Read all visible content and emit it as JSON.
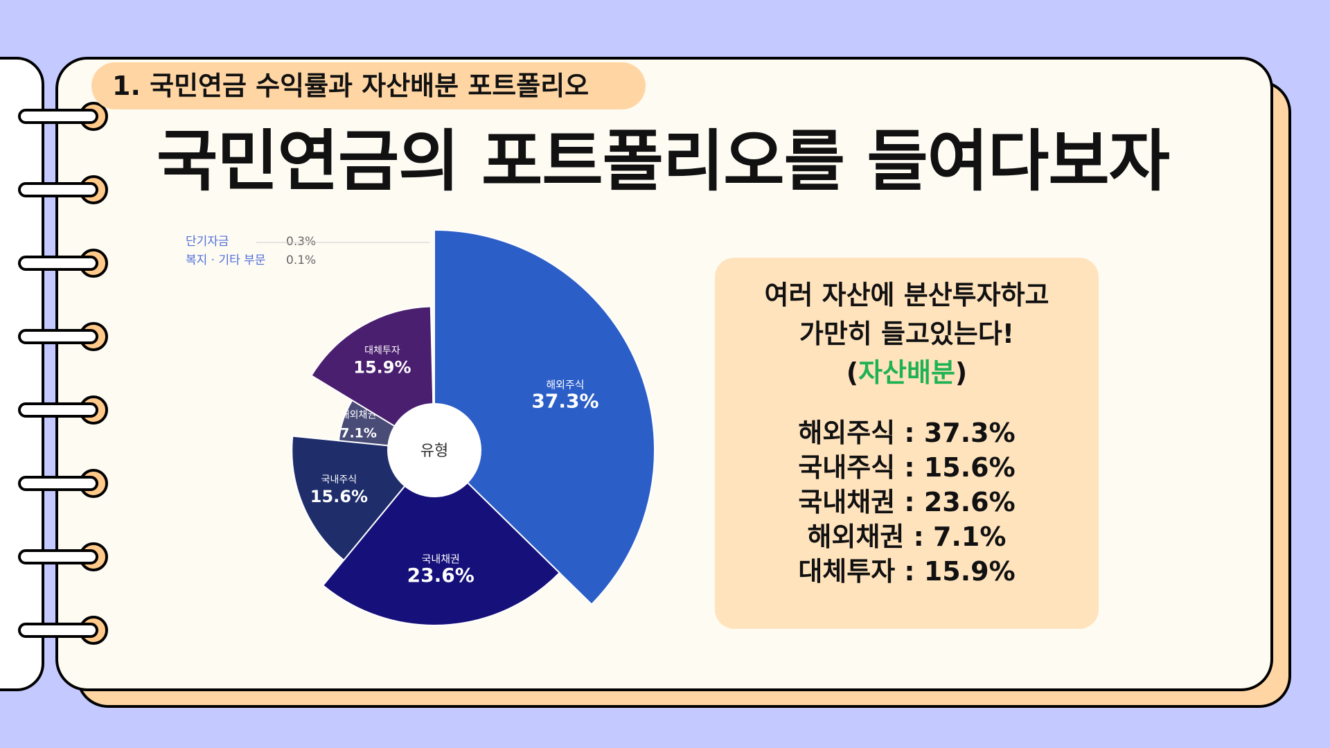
{
  "header": {
    "chapter_label": "1. 국민연금 수익률과 자산배분 포트폴리오",
    "title": "국민연금의 포트폴리오를 들여다보자"
  },
  "colors": {
    "background": "#c4caff",
    "accent": "#ffd6a3",
    "highlight": "#1fb254"
  },
  "chart_data": {
    "type": "pie",
    "style": "polar-area",
    "center_label": "유형",
    "slices": [
      {
        "label": "해외주식",
        "value": 37.3,
        "value_label": "37.3%",
        "color": "#2c5ec8"
      },
      {
        "label": "국내채권",
        "value": 23.6,
        "value_label": "23.6%",
        "color": "#16107a"
      },
      {
        "label": "국내주식",
        "value": 15.6,
        "value_label": "15.6%",
        "color": "#1f2e6b"
      },
      {
        "label": "해외채권",
        "value": 7.1,
        "value_label": "7.1%",
        "color": "#4a4c78"
      },
      {
        "label": "대체투자",
        "value": 15.9,
        "value_label": "15.9%",
        "color": "#4a1f6f"
      },
      {
        "label": "단기자금",
        "value": 0.3,
        "value_label": "0.3%",
        "color": "#111111"
      },
      {
        "label": "복지 · 기타 부문",
        "value": 0.1,
        "value_label": "0.1%",
        "color": "#bbbbbb"
      }
    ],
    "minor_legend": [
      {
        "label": "단기자금",
        "value": "0.3%"
      },
      {
        "label": "복지 · 기타 부문",
        "value": "0.1%"
      }
    ]
  },
  "info": {
    "line1": "여러 자산에 분산투자하고",
    "line2": "가만히 들고있는다!",
    "paren_open": "(",
    "highlight": "자산배분",
    "paren_close": ")",
    "summary": [
      "해외주식 : 37.3%",
      "국내주식 : 15.6%",
      "국내채권 : 23.6%",
      "해외채권 : 7.1%",
      "대체투자 : 15.9%"
    ]
  }
}
